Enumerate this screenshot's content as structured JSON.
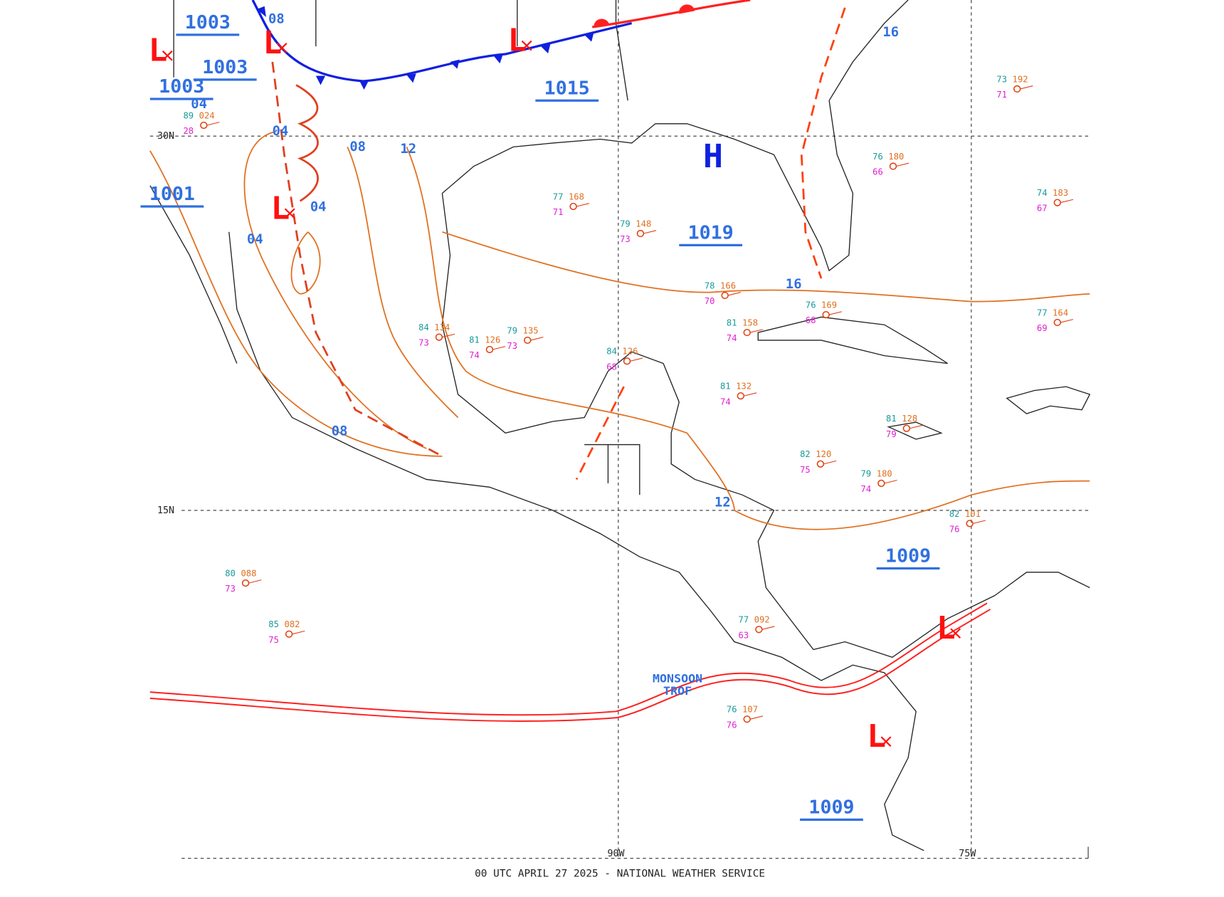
{
  "footer": "00 UTC APRIL 27 2025 - NATIONAL WEATHER SERVICE",
  "grid_labels": [
    "30N",
    "15N",
    "90W",
    "75W"
  ],
  "front_label": "MONSOON TROF",
  "highs": [
    "H"
  ],
  "lows": [
    "L",
    "L",
    "L",
    "L",
    "L",
    "L"
  ],
  "pressure_labels": [
    "1003",
    "1003",
    "1003",
    "1015",
    "1019",
    "1001",
    "1009",
    "1009"
  ],
  "isobar_labels": [
    "08",
    "04",
    "08",
    "12",
    "04",
    "04",
    "08",
    "16",
    "16",
    "12",
    "04"
  ],
  "stations": [
    {
      "temp": "73",
      "pressure": "192",
      "dew": "71"
    },
    {
      "temp": "76",
      "pressure": "180",
      "dew": "66"
    },
    {
      "temp": "74",
      "pressure": "183",
      "dew": "67"
    },
    {
      "temp": "78",
      "pressure": "166",
      "dew": "70"
    },
    {
      "temp": "76",
      "pressure": "169",
      "dew": "68"
    },
    {
      "temp": "81",
      "pressure": "158",
      "dew": "74"
    },
    {
      "temp": "84",
      "pressure": "126",
      "dew": "68"
    },
    {
      "temp": "79",
      "pressure": "135",
      "dew": "73"
    },
    {
      "temp": "81",
      "pressure": "126",
      "dew": "74"
    },
    {
      "temp": "84",
      "pressure": "134",
      "dew": "73"
    },
    {
      "temp": "81",
      "pressure": "132",
      "dew": "74"
    },
    {
      "temp": "82",
      "pressure": "120",
      "dew": "75"
    },
    {
      "temp": "79",
      "pressure": "180",
      "dew": "74"
    },
    {
      "temp": "81",
      "pressure": "128",
      "dew": "79"
    },
    {
      "temp": "80",
      "pressure": "088",
      "dew": "73"
    },
    {
      "temp": "85",
      "pressure": "082",
      "dew": "75"
    },
    {
      "temp": "82",
      "pressure": "101",
      "dew": "76"
    },
    {
      "temp": "76",
      "pressure": "107",
      "dew": "76"
    },
    {
      "temp": "79",
      "pressure": "148",
      "dew": "73"
    },
    {
      "temp": "77",
      "pressure": "168",
      "dew": "71"
    },
    {
      "temp": "89",
      "pressure": "024",
      "dew": "28"
    },
    {
      "temp": "77",
      "pressure": "092",
      "dew": "63"
    },
    {
      "temp": "77",
      "pressure": "164",
      "dew": "69"
    }
  ]
}
